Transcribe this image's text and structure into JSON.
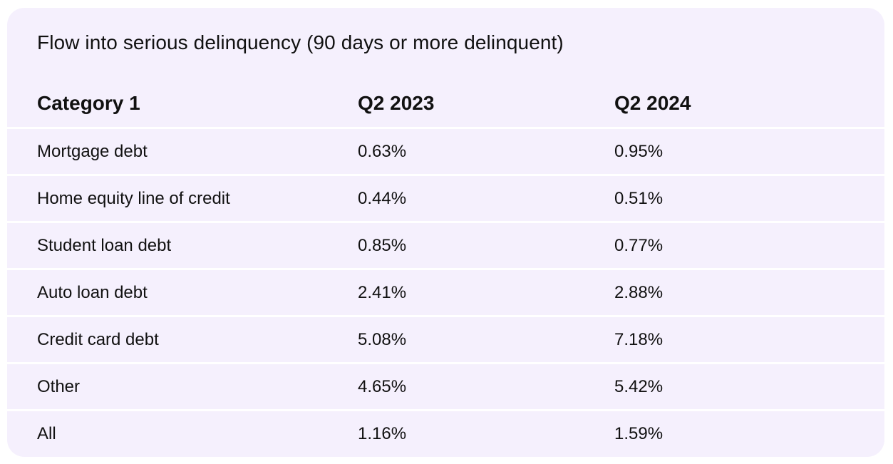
{
  "chart_data": {
    "type": "table",
    "title": "Flow into serious delinquency (90 days or more delinquent)",
    "columns": [
      "Category 1",
      "Q2 2023",
      "Q2 2024"
    ],
    "rows": [
      {
        "category": "Mortgage debt",
        "q2_2023": "0.63%",
        "q2_2024": "0.95%"
      },
      {
        "category": "Home equity line of credit",
        "q2_2023": "0.44%",
        "q2_2024": "0.51%"
      },
      {
        "category": "Student loan debt",
        "q2_2023": "0.85%",
        "q2_2024": "0.77%"
      },
      {
        "category": "Auto loan debt",
        "q2_2023": "2.41%",
        "q2_2024": "2.88%"
      },
      {
        "category": "Credit card debt",
        "q2_2023": "5.08%",
        "q2_2024": "7.18%"
      },
      {
        "category": "Other",
        "q2_2023": "4.65%",
        "q2_2024": "5.42%"
      },
      {
        "category": "All",
        "q2_2023": "1.16%",
        "q2_2024": "1.59%"
      }
    ]
  },
  "colors": {
    "card_background": "#f5f0fd",
    "row_divider": "#ffffff",
    "text": "#111111"
  }
}
